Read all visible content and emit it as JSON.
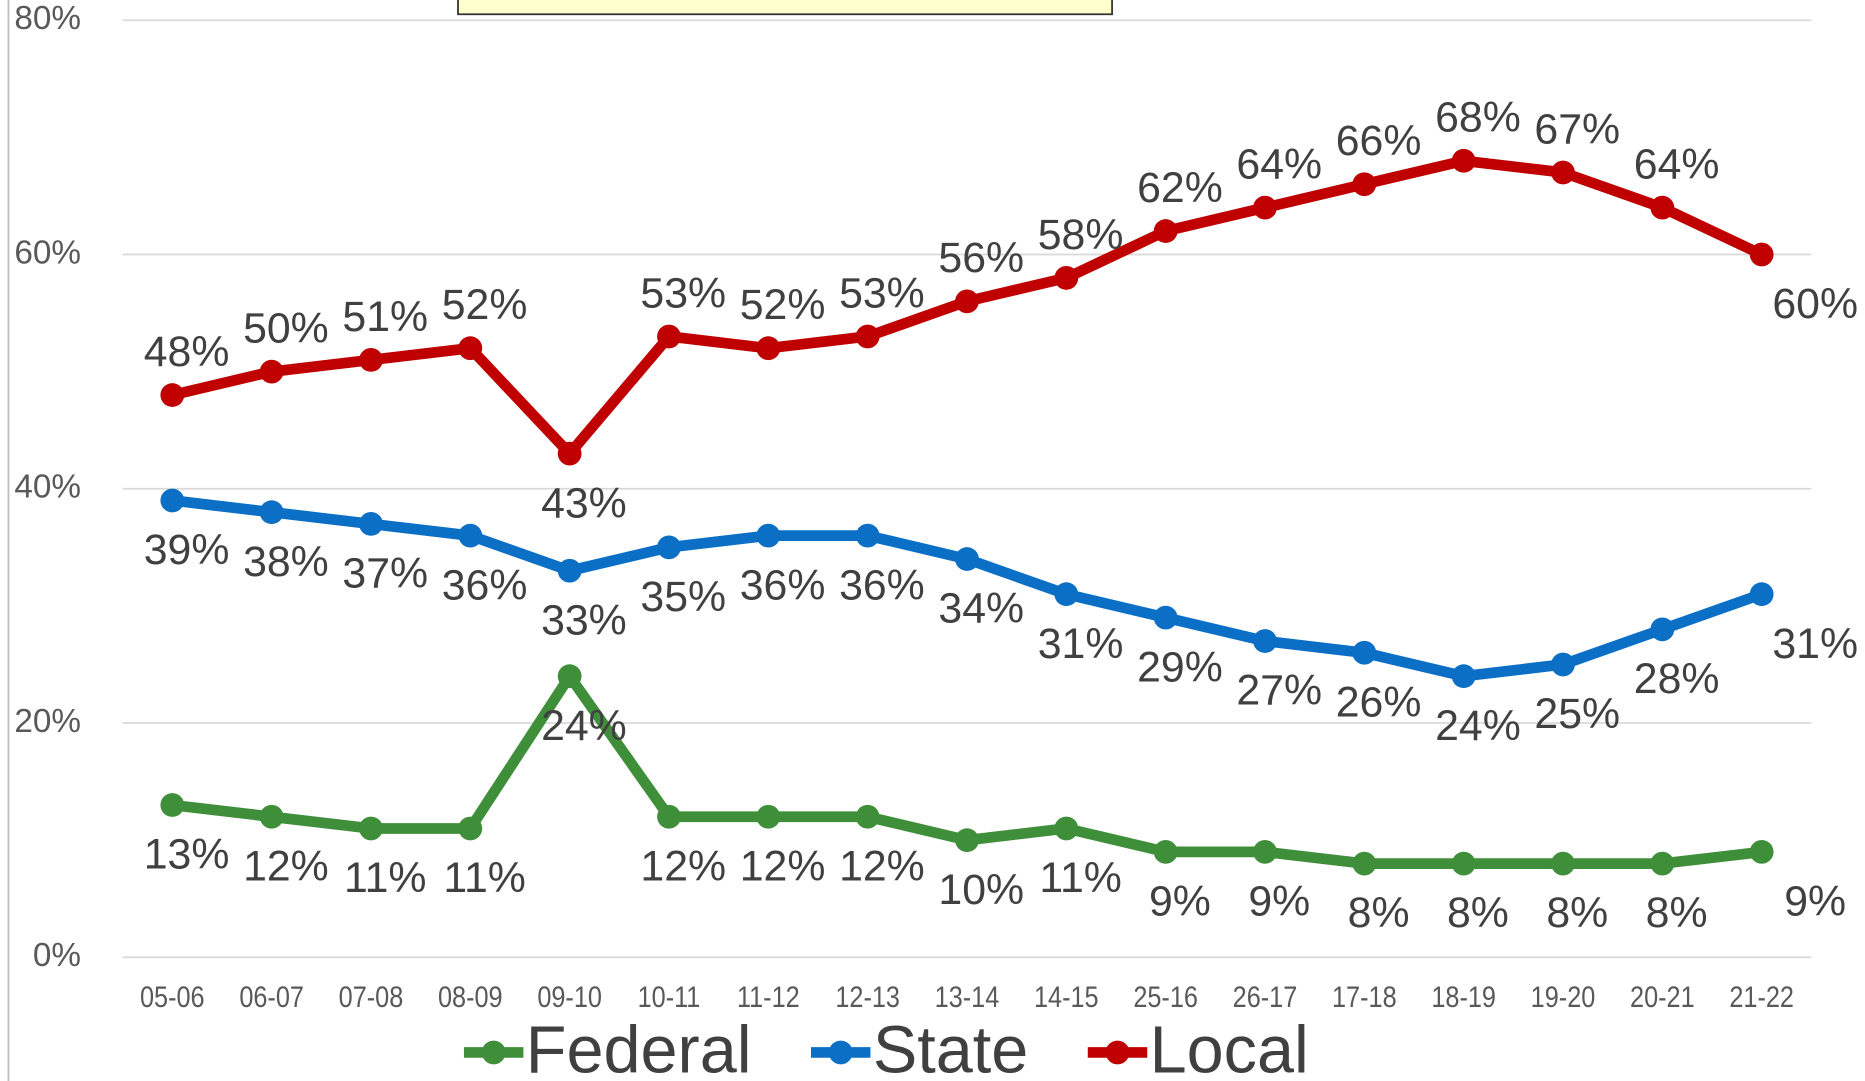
{
  "chart_data": {
    "type": "line",
    "categories": [
      "05-06",
      "06-07",
      "07-08",
      "08-09",
      "09-10",
      "10-11",
      "11-12",
      "12-13",
      "13-14",
      "14-15",
      "25-16",
      "26-17",
      "17-18",
      "18-19",
      "19-20",
      "20-21",
      "21-22"
    ],
    "series": [
      {
        "name": "Federal",
        "color": "#3f8f3a",
        "values": [
          13,
          12,
          11,
          11,
          24,
          12,
          12,
          12,
          10,
          11,
          9,
          9,
          8,
          8,
          8,
          8,
          9
        ],
        "value_labels": [
          "13%",
          "12%",
          "11%",
          "11%",
          "24%",
          "12%",
          "12%",
          "12%",
          "10%",
          "11%",
          "9%",
          "9%",
          "8%",
          "8%",
          "8%",
          "8%",
          "9%"
        ]
      },
      {
        "name": "State",
        "color": "#0b6fc6",
        "values": [
          39,
          38,
          37,
          36,
          33,
          35,
          36,
          36,
          34,
          31,
          29,
          27,
          26,
          24,
          25,
          28,
          31
        ],
        "value_labels": [
          "39%",
          "38%",
          "37%",
          "36%",
          "33%",
          "35%",
          "36%",
          "36%",
          "34%",
          "31%",
          "29%",
          "27%",
          "26%",
          "24%",
          "25%",
          "28%",
          "31%"
        ]
      },
      {
        "name": "Local",
        "color": "#c00000",
        "values": [
          48,
          50,
          51,
          52,
          43,
          53,
          52,
          53,
          56,
          58,
          62,
          64,
          66,
          68,
          67,
          64,
          60
        ],
        "value_labels": [
          "48%",
          "50%",
          "51%",
          "52%",
          "43%",
          "53%",
          "52%",
          "53%",
          "56%",
          "58%",
          "62%",
          "64%",
          "66%",
          "68%",
          "67%",
          "64%",
          "60%"
        ]
      }
    ],
    "ylim": [
      0,
      80
    ],
    "yticks": [
      {
        "value": 0,
        "label": "0%"
      },
      {
        "value": 20,
        "label": "20%"
      },
      {
        "value": 40,
        "label": "40%"
      },
      {
        "value": 60,
        "label": "60%"
      },
      {
        "value": 80,
        "label": "80%"
      }
    ],
    "grid": true,
    "legend": "bottom"
  }
}
